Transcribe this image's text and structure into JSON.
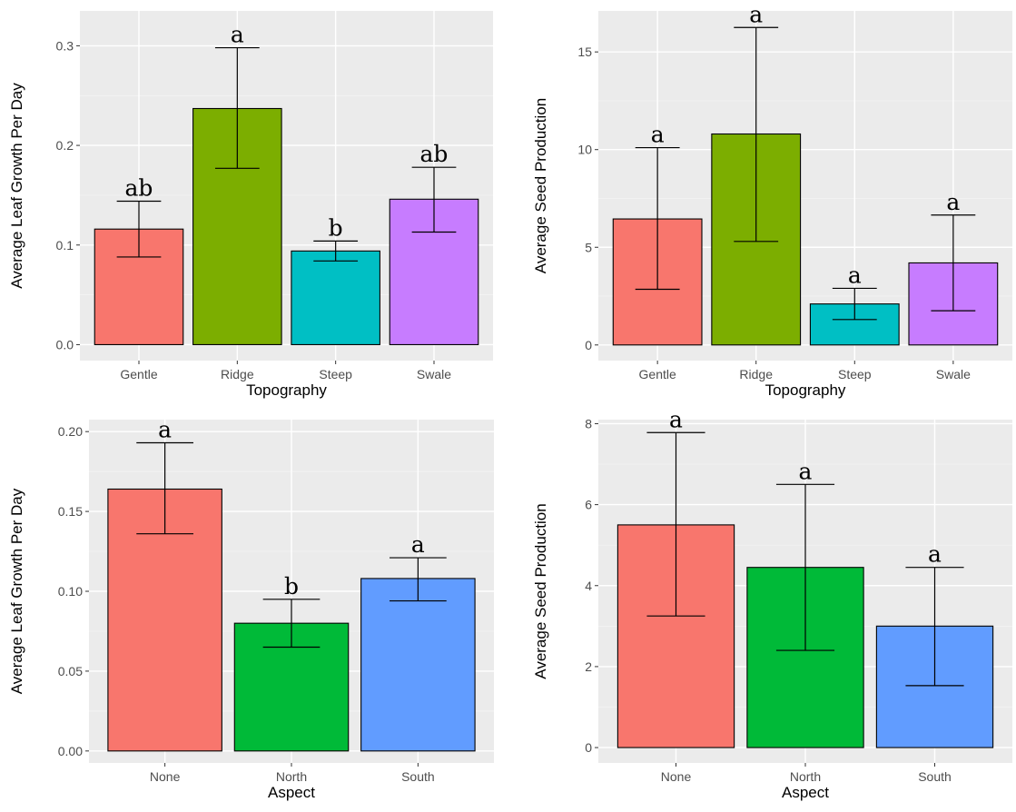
{
  "chart_data": [
    {
      "type": "bar",
      "xlabel": "Topography",
      "ylabel": "Average Leaf Growth Per Day",
      "categories": [
        "Gentle",
        "Ridge",
        "Steep",
        "Swale"
      ],
      "values": [
        0.116,
        0.237,
        0.094,
        0.146
      ],
      "err_low": [
        0.088,
        0.177,
        0.084,
        0.113
      ],
      "err_high": [
        0.144,
        0.298,
        0.104,
        0.178
      ],
      "sig": [
        "ab",
        "a",
        "b",
        "ab"
      ],
      "colors": [
        "#F8766D",
        "#7CAE00",
        "#00BFC4",
        "#C77CFF"
      ],
      "ylim": [
        -0.016,
        0.335
      ],
      "yticks": [
        0.0,
        0.1,
        0.2,
        0.3
      ],
      "ytick_labels": [
        "0.0",
        "0.1",
        "0.2",
        "0.3"
      ],
      "grid": true
    },
    {
      "type": "bar",
      "xlabel": "Topography",
      "ylabel": "Average Seed Production",
      "categories": [
        "Gentle",
        "Ridge",
        "Steep",
        "Swale"
      ],
      "values": [
        6.45,
        10.8,
        2.1,
        4.2
      ],
      "err_low": [
        2.85,
        5.3,
        1.3,
        1.75
      ],
      "err_high": [
        10.1,
        16.25,
        2.9,
        6.65
      ],
      "sig": [
        "a",
        "a",
        "a",
        "a"
      ],
      "colors": [
        "#F8766D",
        "#7CAE00",
        "#00BFC4",
        "#C77CFF"
      ],
      "ylim": [
        -0.8,
        17.1
      ],
      "yticks": [
        0,
        5,
        10,
        15
      ],
      "ytick_labels": [
        "0",
        "5",
        "10",
        "15"
      ],
      "grid": true
    },
    {
      "type": "bar",
      "xlabel": "Aspect",
      "ylabel": "Average Leaf Growth Per Day",
      "categories": [
        "None",
        "North",
        "South"
      ],
      "values": [
        0.164,
        0.08,
        0.108
      ],
      "err_low": [
        0.136,
        0.065,
        0.094
      ],
      "err_high": [
        0.193,
        0.095,
        0.121
      ],
      "sig": [
        "a",
        "b",
        "a"
      ],
      "colors": [
        "#F8766D",
        "#00BA38",
        "#619CFF"
      ],
      "ylim": [
        -0.0075,
        0.2075
      ],
      "yticks": [
        0.0,
        0.05,
        0.1,
        0.15,
        0.2
      ],
      "ytick_labels": [
        "0.00",
        "0.05",
        "0.10",
        "0.15",
        "0.20"
      ],
      "grid": true
    },
    {
      "type": "bar",
      "xlabel": "Aspect",
      "ylabel": "Average Seed Production",
      "categories": [
        "None",
        "North",
        "South"
      ],
      "values": [
        5.5,
        4.45,
        3.0
      ],
      "err_low": [
        3.25,
        2.4,
        1.53
      ],
      "err_high": [
        7.78,
        6.5,
        4.45
      ],
      "sig": [
        "a",
        "a",
        "a"
      ],
      "colors": [
        "#F8766D",
        "#00BA38",
        "#619CFF"
      ],
      "ylim": [
        -0.38,
        8.1
      ],
      "yticks": [
        0,
        2,
        4,
        6,
        8
      ],
      "ytick_labels": [
        "0",
        "2",
        "4",
        "6",
        "8"
      ],
      "grid": true
    }
  ]
}
